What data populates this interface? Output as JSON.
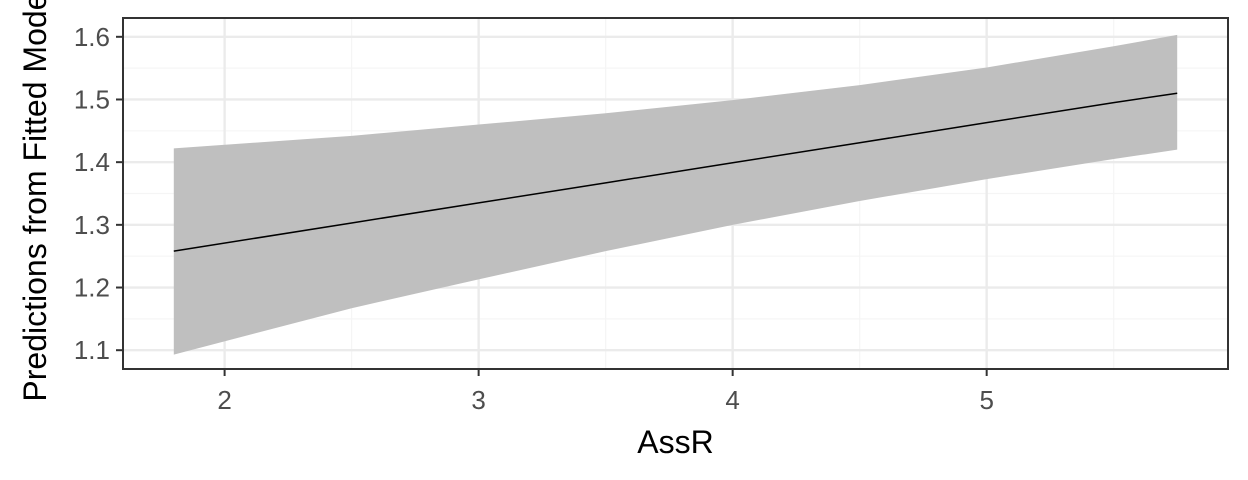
{
  "chart_data": {
    "type": "line",
    "title": "",
    "xlabel": "AssR",
    "ylabel": "Predictions from Fitted Model",
    "xlim": [
      1.6,
      5.95
    ],
    "ylim": [
      1.07,
      1.63
    ],
    "x_ticks": [
      2,
      3,
      4,
      5
    ],
    "x_tick_labels": [
      "2",
      "3",
      "4",
      "5"
    ],
    "y_ticks": [
      1.1,
      1.2,
      1.3,
      1.4,
      1.5,
      1.6
    ],
    "y_tick_labels": [
      "1.1",
      "1.2",
      "1.3",
      "1.4",
      "1.5",
      "1.6"
    ],
    "grid": true,
    "legend": "none",
    "series": [
      {
        "x": [
          1.8,
          2.5,
          3.0,
          3.5,
          4.0,
          4.5,
          5.0,
          5.5,
          5.75
        ],
        "fit": [
          1.258,
          1.303,
          1.335,
          1.367,
          1.399,
          1.431,
          1.463,
          1.495,
          1.51
        ],
        "lower": [
          1.093,
          1.167,
          1.213,
          1.258,
          1.3,
          1.338,
          1.373,
          1.405,
          1.42
        ],
        "upper": [
          1.422,
          1.442,
          1.46,
          1.478,
          1.499,
          1.523,
          1.551,
          1.585,
          1.603
        ]
      }
    ],
    "colors": {
      "ribbon": "#bfbfbf",
      "line": "#000000",
      "grid_major": "#ebebeb",
      "grid_minor": "#f5f5f5",
      "panel_border": "#333333"
    }
  }
}
